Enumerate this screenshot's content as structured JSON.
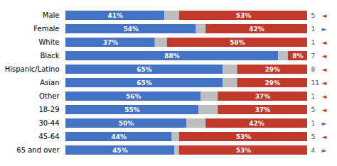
{
  "chart_data": {
    "type": "bar",
    "orientation": "horizontal",
    "stacked": true,
    "tick_labels": "y",
    "grid": false,
    "categories": [
      "Male",
      "Female",
      "White",
      "Black",
      "Hispanic/Latino",
      "Asian",
      "Other",
      "18-29",
      "30-44",
      "45-64",
      "65 and over"
    ],
    "xlim": [
      0,
      100
    ],
    "series": [
      {
        "color": "#4472C4",
        "data_labels": true,
        "values": [
          41,
          54,
          37,
          88,
          65,
          65,
          56,
          55,
          50,
          44,
          45
        ],
        "value_labels": [
          "41%",
          "54%",
          "37%",
          "88%",
          "65%",
          "65%",
          "56%",
          "55%",
          "50%",
          "44%",
          "45%"
        ]
      },
      {
        "color": "#BEBEBE",
        "data_labels": false,
        "values": [
          6,
          4,
          5,
          4,
          6,
          6,
          7,
          8,
          8,
          3,
          2
        ]
      },
      {
        "color": "#C0392B",
        "data_labels": true,
        "values": [
          53,
          42,
          58,
          8,
          29,
          29,
          37,
          37,
          42,
          53,
          53
        ],
        "value_labels": [
          "53%",
          "42%",
          "58%",
          "8%",
          "29%",
          "29%",
          "37%",
          "37%",
          "42%",
          "53%",
          "53%"
        ]
      }
    ],
    "side_labels": [
      "5",
      "1",
      "1",
      "7",
      "8",
      "11",
      "1",
      "5",
      "1",
      "5",
      "4"
    ],
    "arrows": [
      "◄",
      "►",
      "◄",
      "◄",
      "◄",
      "◄",
      "◄",
      "◄",
      "►",
      "◄",
      "►"
    ],
    "arrow_colors": [
      "#C0392B",
      "#4472C4",
      "#C0392B",
      "#C0392B",
      "#C0392B",
      "#C0392B",
      "#C0392B",
      "#C0392B",
      "#4472C4",
      "#C0392B",
      "#4472C4"
    ]
  }
}
